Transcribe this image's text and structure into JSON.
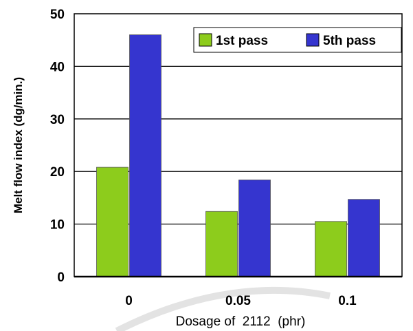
{
  "chart_data": {
    "type": "bar",
    "title": "",
    "xlabel": "Dosage of  2112  (phr)",
    "ylabel": "Melt flow index (dg/min.)",
    "categories": [
      "0",
      "0.05",
      "0.1"
    ],
    "series": [
      {
        "name": "1st pass",
        "values": [
          20.8,
          12.4,
          10.5
        ],
        "color": "#8dcc1c"
      },
      {
        "name": "5th pass",
        "values": [
          46.0,
          18.4,
          14.7
        ],
        "color": "#3535cf"
      }
    ],
    "ylim": [
      0,
      50
    ],
    "yticks": [
      "0",
      "10",
      "20",
      "30",
      "40",
      "50"
    ],
    "grid": true,
    "legend": "top-right"
  }
}
